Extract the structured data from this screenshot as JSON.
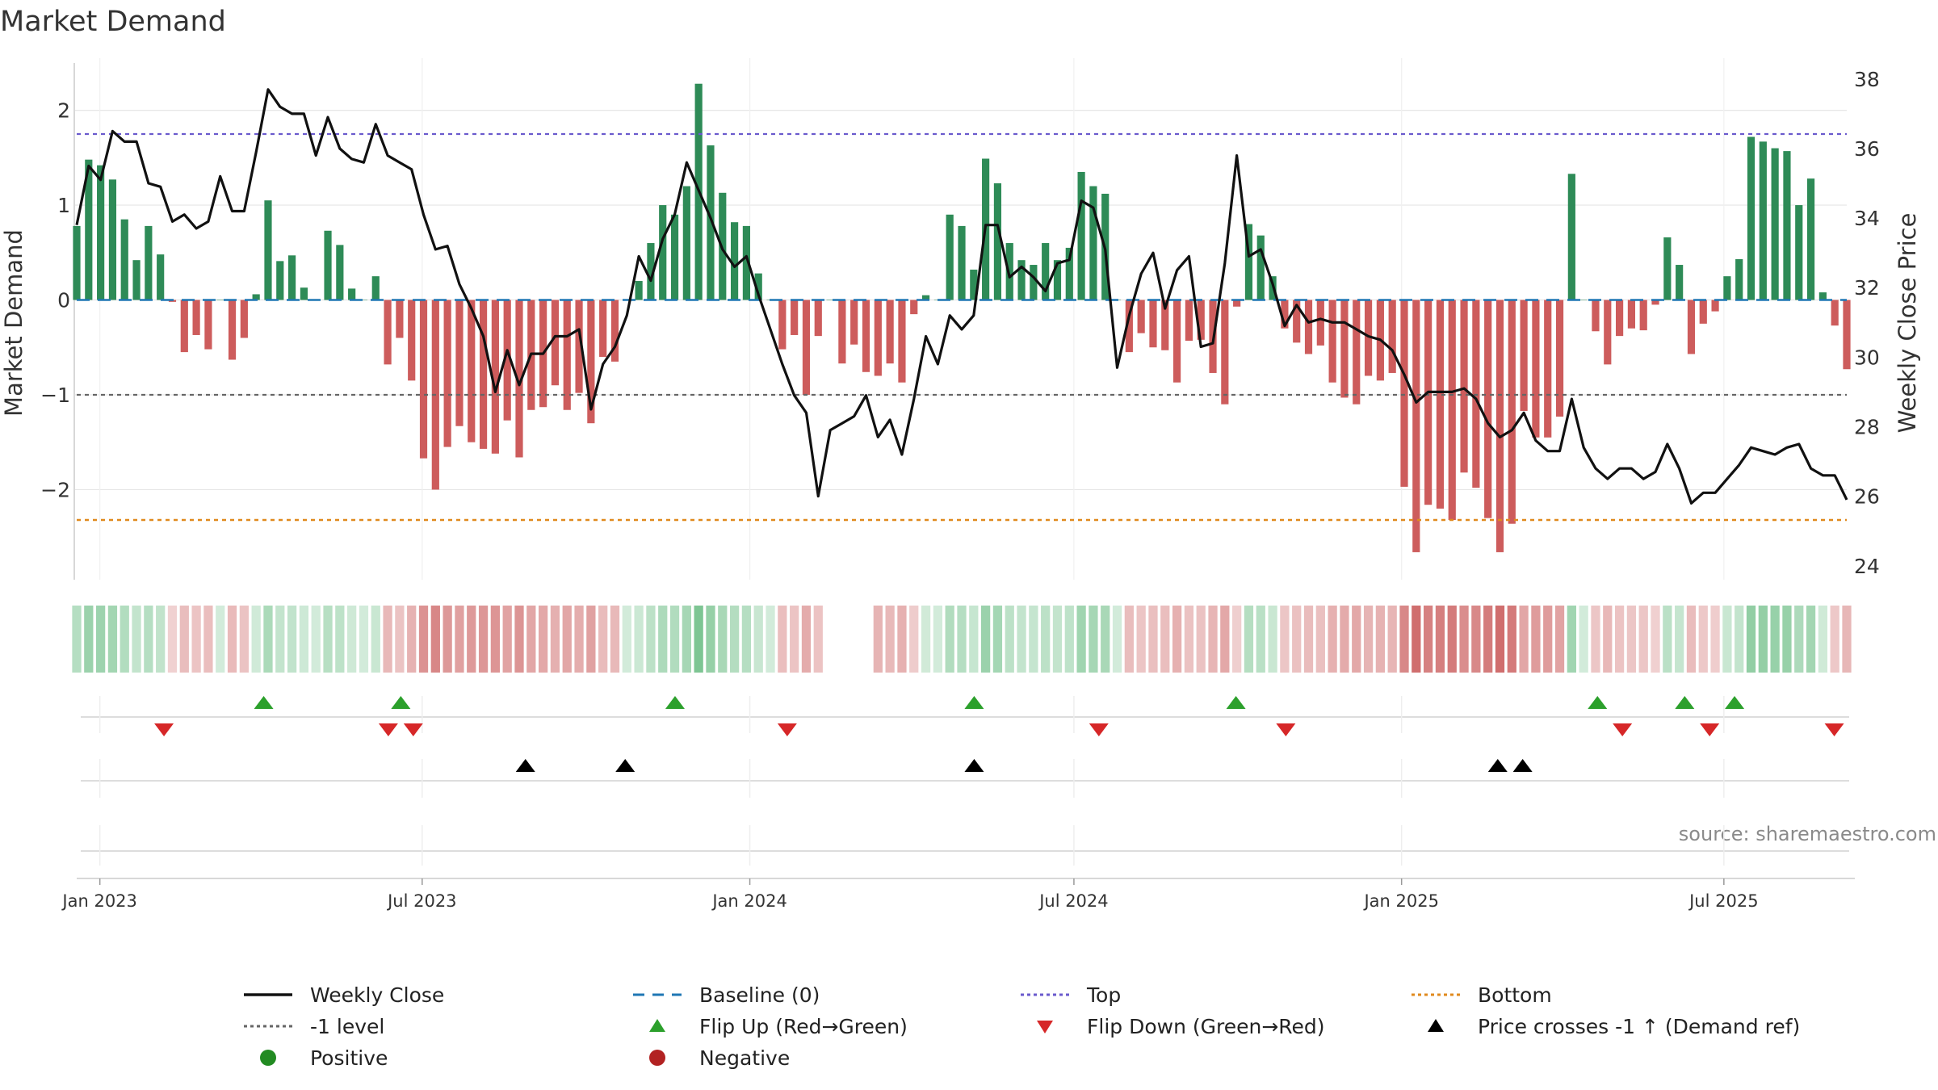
{
  "chart_data": {
    "type": "bar",
    "title": "Market Demand",
    "ylabel_left": "Market Demand",
    "ylabel_right": "Weekly Close Price",
    "source": "source: sharemaestro.com",
    "ylim_left": [
      -2.95,
      2.55
    ],
    "yticks_left": [
      2,
      1,
      0,
      -1,
      -2
    ],
    "ytick_labels_left": [
      "2",
      "1",
      "0",
      "−1",
      "−2"
    ],
    "ylim_right": [
      23.6,
      38.6
    ],
    "yticks_right": [
      38,
      36,
      34,
      32,
      30,
      28,
      26,
      24
    ],
    "x_start": "2022-12-19",
    "x_end": "2025-09-08",
    "x_tick_dates": [
      "2023-01-01",
      "2023-07-01",
      "2024-01-01",
      "2024-07-01",
      "2025-01-01",
      "2025-07-01"
    ],
    "x_tick_labels": [
      "Jan 2023",
      "Jul 2023",
      "Jan 2024",
      "Jul 2024",
      "Jan 2025",
      "Jul 2025"
    ],
    "reference_lines": {
      "top": 1.75,
      "bottom": -2.32,
      "level_minus_one": -1,
      "baseline": 0
    },
    "demand": [
      0.78,
      1.48,
      1.42,
      1.27,
      0.85,
      0.42,
      0.78,
      0.48,
      -0.02,
      -0.55,
      -0.37,
      -0.52,
      0.0,
      -0.63,
      -0.4,
      0.06,
      1.05,
      0.41,
      0.47,
      0.13,
      0.0,
      0.73,
      0.58,
      0.12,
      0.0,
      0.25,
      -0.68,
      -0.4,
      -0.85,
      -1.67,
      -2.0,
      -1.55,
      -1.33,
      -1.5,
      -1.57,
      -1.62,
      -1.27,
      -1.66,
      -1.16,
      -1.13,
      -0.9,
      -1.16,
      -0.98,
      -1.3,
      -0.6,
      -0.65,
      0.0,
      0.2,
      0.6,
      1.0,
      0.9,
      1.2,
      2.28,
      1.63,
      1.13,
      0.82,
      0.78,
      0.28,
      0.0,
      -0.52,
      -0.37,
      -1.0,
      -0.38,
      0.0,
      -0.67,
      -0.47,
      -0.76,
      -0.8,
      -0.67,
      -0.87,
      -0.15,
      0.05,
      0.0,
      0.9,
      0.78,
      0.32,
      1.49,
      1.23,
      0.6,
      0.42,
      0.37,
      0.6,
      0.42,
      0.55,
      1.35,
      1.2,
      1.12,
      0.0,
      -0.55,
      -0.35,
      -0.5,
      -0.53,
      -0.87,
      -0.43,
      -0.42,
      -0.77,
      -1.1,
      -0.07,
      0.8,
      0.68,
      0.25,
      -0.3,
      -0.45,
      -0.57,
      -0.48,
      -0.87,
      -1.03,
      -1.1,
      -0.8,
      -0.85,
      -0.77,
      -1.97,
      -2.66,
      -2.16,
      -2.2,
      -2.32,
      -1.82,
      -1.98,
      -2.3,
      -2.66,
      -2.36,
      -1.17,
      -1.45,
      -1.45,
      -1.23,
      1.33,
      0.0,
      -0.33,
      -0.68,
      -0.38,
      -0.3,
      -0.32,
      -0.05,
      0.66,
      0.37,
      -0.57,
      -0.25,
      -0.12,
      0.25,
      0.43,
      1.72,
      1.67,
      1.6,
      1.57,
      1.0,
      1.28,
      0.08,
      -0.27,
      -0.73
    ],
    "weekly_close": [
      33.8,
      35.5,
      35.1,
      36.5,
      36.2,
      36.2,
      35.0,
      34.9,
      33.9,
      34.1,
      33.7,
      33.9,
      35.2,
      34.2,
      34.2,
      35.9,
      37.7,
      37.2,
      37.0,
      37.0,
      35.8,
      36.9,
      36.0,
      35.7,
      35.6,
      36.7,
      35.8,
      35.6,
      35.4,
      34.1,
      33.1,
      33.2,
      32.1,
      31.4,
      30.6,
      29.0,
      30.2,
      29.2,
      30.1,
      30.1,
      30.6,
      30.6,
      30.8,
      28.5,
      29.8,
      30.3,
      31.2,
      32.9,
      32.2,
      33.4,
      34.1,
      35.6,
      34.8,
      34.0,
      33.1,
      32.6,
      32.9,
      31.8,
      30.8,
      29.8,
      28.9,
      28.4,
      26.0,
      27.9,
      28.1,
      28.3,
      28.9,
      27.7,
      28.2,
      27.2,
      28.8,
      30.6,
      29.8,
      31.2,
      30.8,
      31.2,
      33.8,
      33.8,
      32.3,
      32.6,
      32.3,
      31.9,
      32.7,
      32.8,
      34.5,
      34.3,
      33.1,
      29.7,
      31.2,
      32.4,
      33.0,
      31.4,
      32.5,
      32.9,
      30.3,
      30.4,
      32.7,
      35.8,
      32.9,
      33.1,
      32.1,
      30.9,
      31.5,
      31.0,
      31.1,
      31.0,
      31.0,
      30.8,
      30.6,
      30.5,
      30.2,
      29.5,
      28.7,
      29.0,
      29.0,
      29.0,
      29.1,
      28.8,
      28.1,
      27.7,
      27.9,
      28.4,
      27.6,
      27.3,
      27.3,
      28.8,
      27.4,
      26.8,
      26.5,
      26.8,
      26.8,
      26.5,
      26.7,
      27.5,
      26.8,
      25.8,
      26.1,
      26.1,
      26.5,
      26.9,
      27.4,
      27.3,
      27.2,
      27.4,
      27.5,
      26.8,
      26.6,
      26.6,
      25.9
    ],
    "flip_up_dates": [
      "2023-04-03",
      "2023-06-19",
      "2023-11-20",
      "2024-05-06",
      "2024-09-30",
      "2025-04-21",
      "2025-06-09",
      "2025-07-07"
    ],
    "flip_down_dates": [
      "2023-02-06",
      "2023-06-12",
      "2023-06-26",
      "2024-01-22",
      "2024-07-15",
      "2024-10-28",
      "2025-05-05",
      "2025-06-23",
      "2025-09-01"
    ],
    "cross_dates": [
      "2023-08-28",
      "2023-10-23",
      "2024-05-06",
      "2025-02-24",
      "2025-03-10"
    ],
    "strip_gaps": [
      63,
      64,
      65,
      66
    ]
  },
  "colors": {
    "positive_bar": "#2e8b57",
    "negative_bar": "#cd5c5c",
    "close_line": "#111111",
    "baseline": "#1f77b4",
    "top_line": "#6a5acd",
    "minus_one_line": "#666666",
    "bottom_line": "#e08a1e",
    "flip_up": "#2ca02c",
    "flip_down": "#d62728",
    "cross": "#000000",
    "strip_green": "#4caf6a",
    "strip_red": "#c44a4a",
    "positive_dot": "#228b22",
    "negative_dot": "#b22222",
    "grid": "#e6e6e6"
  },
  "legend": [
    {
      "label": "Weekly Close",
      "symbol": "line-black"
    },
    {
      "label": "Baseline (0)",
      "symbol": "dash-blue"
    },
    {
      "label": "Top",
      "symbol": "dot-slate"
    },
    {
      "label": "Bottom",
      "symbol": "dot-orange"
    },
    {
      "label": "-1 level",
      "symbol": "dot-gray"
    },
    {
      "label": "Flip Up (Red→Green)",
      "symbol": "triangle-up-green"
    },
    {
      "label": "Flip Down (Green→Red)",
      "symbol": "triangle-down-red"
    },
    {
      "label": "Price crosses -1 ↑ (Demand ref)",
      "symbol": "triangle-up-black"
    },
    {
      "label": "Positive",
      "symbol": "circle-green"
    },
    {
      "label": "Negative",
      "symbol": "circle-red"
    }
  ]
}
